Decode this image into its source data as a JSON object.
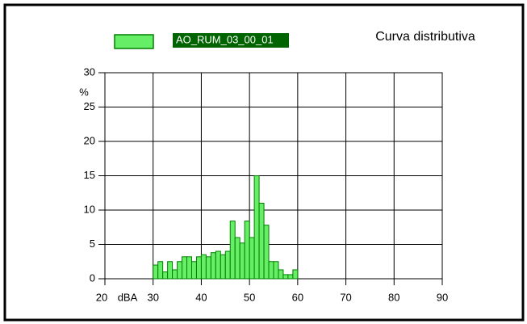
{
  "chart_data": {
    "type": "histogram",
    "title": "Curva distributiva",
    "x_label": "dBA",
    "y_label": "%",
    "bins": [
      30,
      31,
      32,
      33,
      34,
      35,
      36,
      37,
      38,
      39,
      40,
      41,
      42,
      43,
      44,
      45,
      46,
      47,
      48,
      49,
      50,
      51,
      52,
      53,
      54,
      55,
      56,
      57,
      58,
      59,
      60
    ],
    "series": [
      {
        "name": "AO_RUM_03_00_01",
        "color": "#66ee66",
        "values": [
          2,
          2.5,
          1,
          2.5,
          1.3,
          2.5,
          3.2,
          3.2,
          2.5,
          3.2,
          3.5,
          3.2,
          3.8,
          4,
          3.5,
          4,
          8.4,
          6,
          5.2,
          8.4,
          6,
          15,
          11,
          7.8,
          2.5,
          2.5,
          1.3,
          0.6,
          0.6,
          1.3
        ]
      }
    ],
    "xlim": [
      20,
      90
    ],
    "xticks": [
      20,
      30,
      40,
      50,
      60,
      70,
      80,
      90
    ],
    "ylim": [
      0,
      30
    ],
    "yticks": [
      0,
      5,
      10,
      15,
      20,
      25,
      30
    ],
    "grid": true
  }
}
